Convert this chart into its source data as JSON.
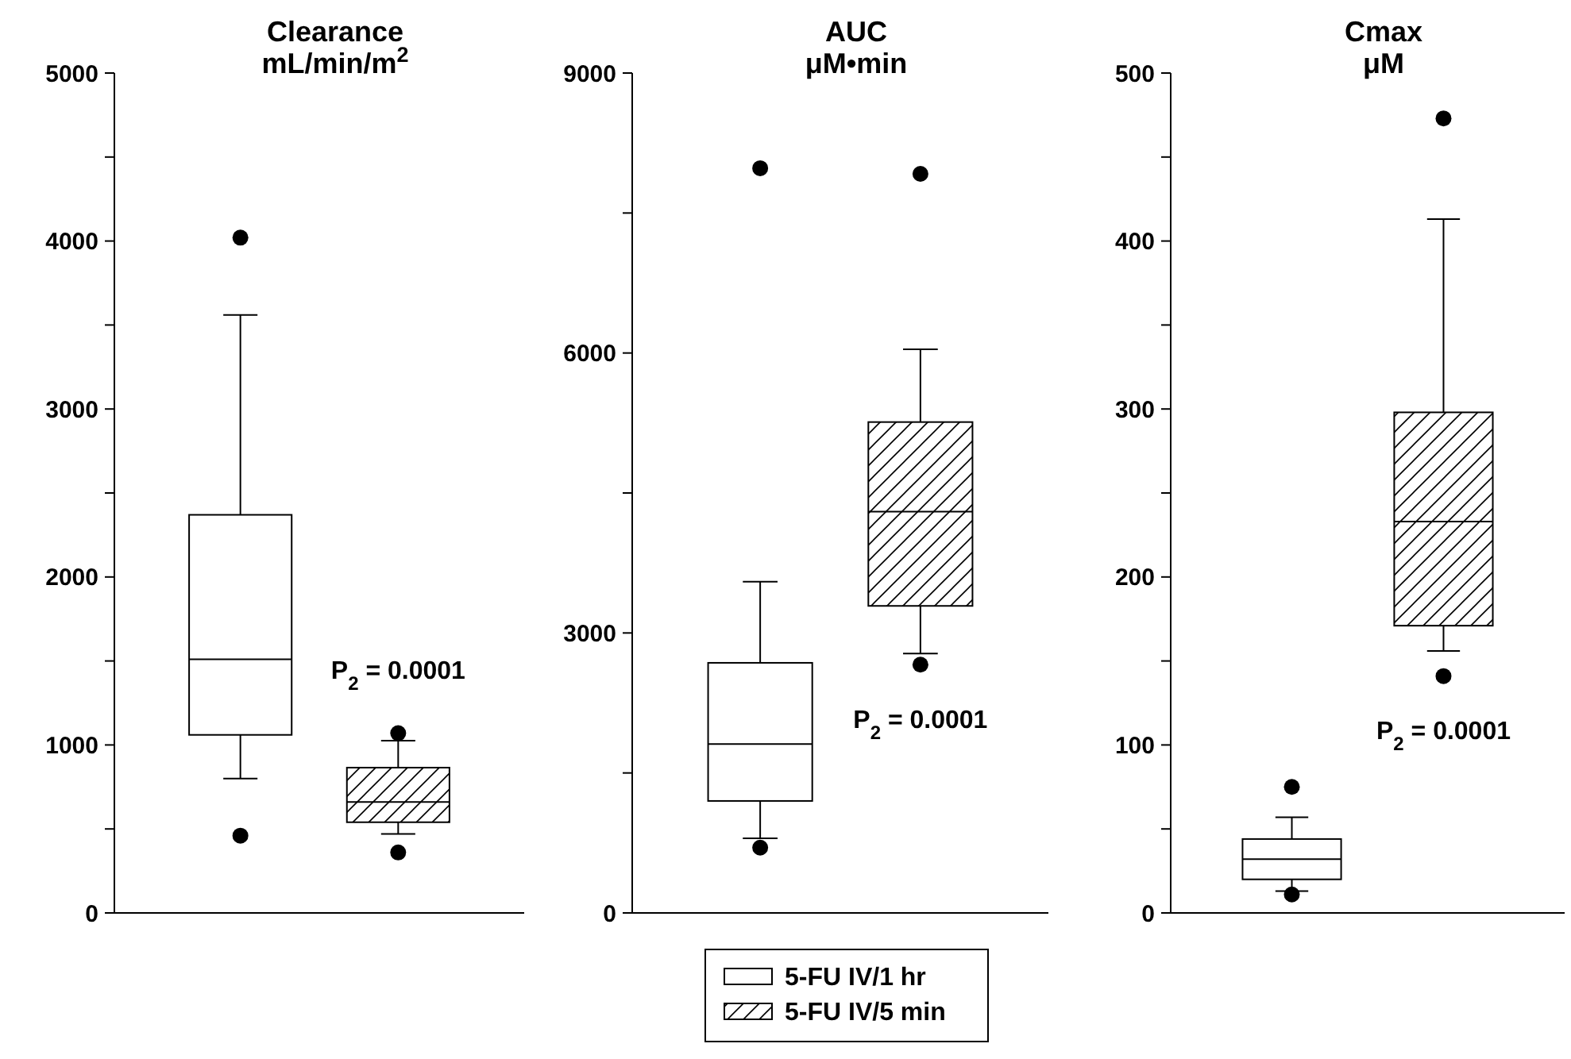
{
  "chart_data": [
    {
      "type": "box",
      "title": "Clearance\nmL/min/m$^{2}$",
      "categories": [
        null
      ],
      "ylim": [
        0,
        5000
      ],
      "yticks": [
        0,
        {
          "value": 500,
          "label": null
        },
        1000,
        {
          "value": 1500,
          "label": null
        },
        2000,
        {
          "value": 2500,
          "label": null
        },
        3000,
        {
          "value": 3500,
          "label": null
        },
        4000,
        {
          "value": 4500,
          "label": null
        },
        5000
      ],
      "annotations": [
        "P$_{2}$ = 0.0001"
      ],
      "series": [
        {
          "boxes": [
            {
              "low": 800,
              "q1": 1060,
              "median": 1510,
              "q3": 2370,
              "high": 3560,
              "outliers": [
                4020,
                460
              ]
            }
          ]
        },
        {
          "boxes": [
            {
              "low": 470,
              "q1": 540,
              "median": 660,
              "q3": 865,
              "high": 1025,
              "outliers": [
                1070,
                360
              ]
            }
          ]
        }
      ]
    },
    {
      "type": "box",
      "title": "AUC\nμM•min",
      "categories": [
        null
      ],
      "ylim": [
        0,
        9000
      ],
      "yticks": [
        0,
        {
          "value": 1500,
          "label": null
        },
        3000,
        {
          "value": 4500,
          "label": null
        },
        6000,
        {
          "value": 7500,
          "label": null
        },
        9000
      ],
      "legend": "bottom",
      "annotations": [
        "P$_{2}$ = 0.0001"
      ],
      "series": [
        {
          "name": "5-FU IV/1 hr",
          "boxes": [
            {
              "low": 800,
              "q1": 1200,
              "median": 1810,
              "q3": 2680,
              "high": 3550,
              "outliers": [
                7980,
                700
              ]
            }
          ]
        },
        {
          "name": "5-FU IV/5 min",
          "boxes": [
            {
              "low": 2780,
              "q1": 3290,
              "median": 4300,
              "q3": 5260,
              "high": 6040,
              "outliers": [
                7920,
                2660
              ]
            }
          ]
        }
      ]
    },
    {
      "type": "box",
      "title": "Cmax\nμM",
      "categories": [
        null
      ],
      "ylim": [
        0,
        500
      ],
      "yticks": [
        0,
        {
          "value": 50,
          "label": null
        },
        100,
        {
          "value": 150,
          "label": null
        },
        200,
        {
          "value": 250,
          "label": null
        },
        300,
        {
          "value": 350,
          "label": null
        },
        400,
        {
          "value": 450,
          "label": null
        },
        500
      ],
      "annotations": [
        "P$_{2}$ = 0.0001"
      ],
      "series": [
        {
          "boxes": [
            {
              "low": 13,
              "q1": 20,
              "median": 32,
              "q3": 44,
              "high": 57,
              "outliers": [
                75,
                11
              ]
            }
          ]
        },
        {
          "boxes": [
            {
              "low": 156,
              "q1": 171,
              "median": 233,
              "q3": 298,
              "high": 413,
              "outliers": [
                473,
                141
              ]
            }
          ]
        }
      ]
    }
  ]
}
